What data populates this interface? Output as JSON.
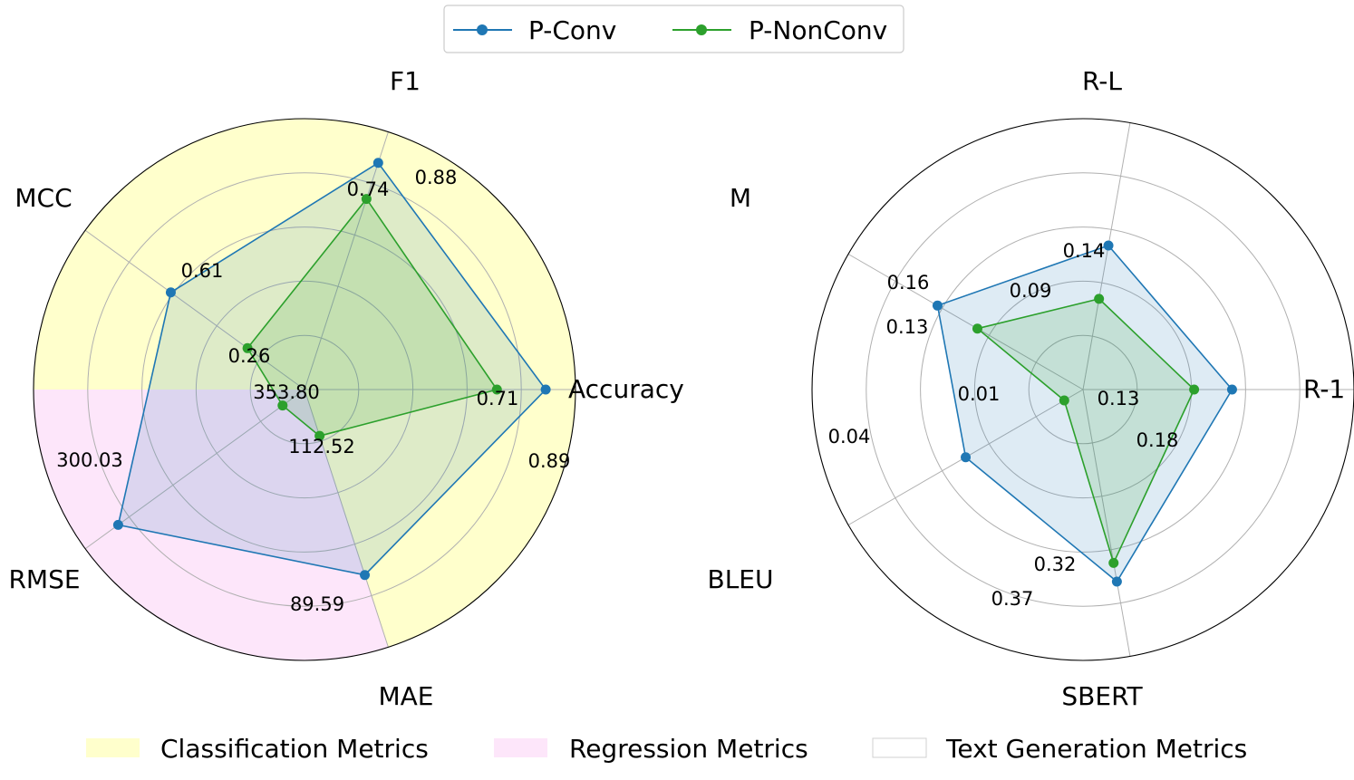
{
  "legend_top": {
    "items": [
      {
        "label": "P-Conv",
        "color": "#1f77b4"
      },
      {
        "label": "P-NonConv",
        "color": "#2ca02c"
      }
    ]
  },
  "legend_bottom": {
    "items": [
      {
        "label": "Classification Metrics",
        "color": "#ffffcc"
      },
      {
        "label": "Regression Metrics",
        "color": "#fde6fa"
      },
      {
        "label": "Text Generation Metrics",
        "color": "#ffffff"
      }
    ]
  },
  "chart_data": [
    {
      "type": "radar",
      "axes": [
        "Accuracy",
        "F1",
        "MCC",
        "RMSE",
        "MAE"
      ],
      "axis_angles_deg": [
        0,
        72,
        144,
        216,
        288
      ],
      "r_ticks": [
        0.2,
        0.4,
        0.6,
        0.8
      ],
      "grid": true,
      "sectors": [
        {
          "group": "Classification Metrics",
          "from_deg": -72,
          "to_deg": 180,
          "color": "#ffffcc"
        },
        {
          "group": "Regression Metrics",
          "from_deg": 180,
          "to_deg": 288,
          "color": "#fde6fa"
        }
      ],
      "series": [
        {
          "name": "P-Conv",
          "color": "#1f77b4",
          "radius": [
            0.89,
            0.88,
            0.61,
            0.85,
            0.72
          ],
          "labels": [
            "0.89",
            "0.88",
            "0.61",
            "300.03",
            "89.59"
          ]
        },
        {
          "name": "P-NonConv",
          "color": "#2ca02c",
          "radius": [
            0.71,
            0.74,
            0.26,
            0.1,
            0.18
          ],
          "labels": [
            "0.71",
            "0.74",
            "0.26",
            "353.80",
            "112.52"
          ]
        }
      ]
    },
    {
      "type": "radar",
      "axes": [
        "R-1",
        "R-L",
        "M",
        "BLEU",
        "SBERT"
      ],
      "axis_angles_deg": [
        0,
        80,
        150,
        210,
        280
      ],
      "r_ticks": [
        0.2,
        0.4,
        0.6,
        0.8
      ],
      "grid": true,
      "sectors": [],
      "series": [
        {
          "name": "P-Conv",
          "color": "#1f77b4",
          "radius": [
            0.55,
            0.54,
            0.62,
            0.5,
            0.72
          ],
          "labels": [
            "0.18",
            "0.14",
            "0.16",
            "0.04",
            "0.37"
          ]
        },
        {
          "name": "P-NonConv",
          "color": "#2ca02c",
          "radius": [
            0.41,
            0.34,
            0.45,
            0.08,
            0.65
          ],
          "labels": [
            "0.13",
            "0.09",
            "0.13",
            "0.01",
            "0.32"
          ]
        }
      ]
    }
  ]
}
